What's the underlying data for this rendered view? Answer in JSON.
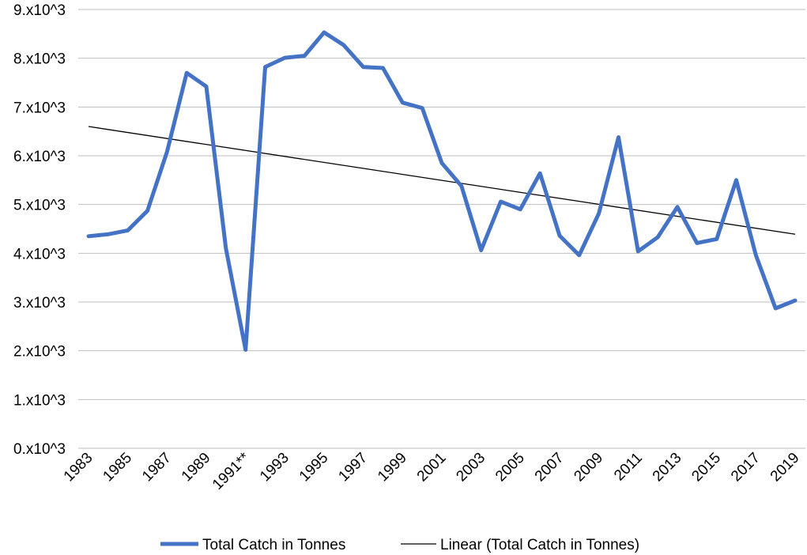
{
  "chart_data": {
    "type": "line",
    "title": "",
    "xlabel": "",
    "ylabel": "",
    "ylim": [
      0,
      9000
    ],
    "y_ticks": [
      "0.x10^3",
      "1.x10^3",
      "2.x10^3",
      "3.x10^3",
      "4.x10^3",
      "5.x10^3",
      "6.x10^3",
      "7.x10^3",
      "8.x10^3",
      "9.x10^3"
    ],
    "categories": [
      "1983",
      "1984",
      "1985",
      "1986",
      "1987",
      "1988",
      "1989",
      "1990",
      "1991**",
      "1992",
      "1993",
      "1994",
      "1995",
      "1996",
      "1997",
      "1998",
      "1999",
      "2000",
      "2001",
      "2002",
      "2003",
      "2004",
      "2005",
      "2006",
      "2007",
      "2008",
      "2009",
      "2010",
      "2011",
      "2012",
      "2013",
      "2014",
      "2015",
      "2016",
      "2017",
      "2018",
      "2019"
    ],
    "x_tick_labels": [
      "1983",
      "1985",
      "1987",
      "1989",
      "1991**",
      "1993",
      "1995",
      "1997",
      "1999",
      "2001",
      "2003",
      "2005",
      "2007",
      "2009",
      "2011",
      "2013",
      "2015",
      "2017",
      "2019"
    ],
    "series": [
      {
        "name": "Total Catch in Tonnes",
        "color": "#4472C4",
        "values": [
          4350,
          4390,
          4470,
          4870,
          6080,
          7700,
          7420,
          4100,
          2020,
          7820,
          8010,
          8050,
          8530,
          8270,
          7820,
          7800,
          7090,
          6980,
          5850,
          5380,
          4060,
          5060,
          4900,
          5640,
          4360,
          3960,
          4820,
          6380,
          4040,
          4330,
          4950,
          4210,
          4290,
          5500,
          3960,
          2870,
          3030
        ]
      }
    ],
    "trendline": {
      "name": "Linear (Total Catch in Tonnes)",
      "type": "linear",
      "color": "#000000",
      "start": 6600,
      "end": 4390
    },
    "grid": true,
    "legend_position": "bottom"
  }
}
